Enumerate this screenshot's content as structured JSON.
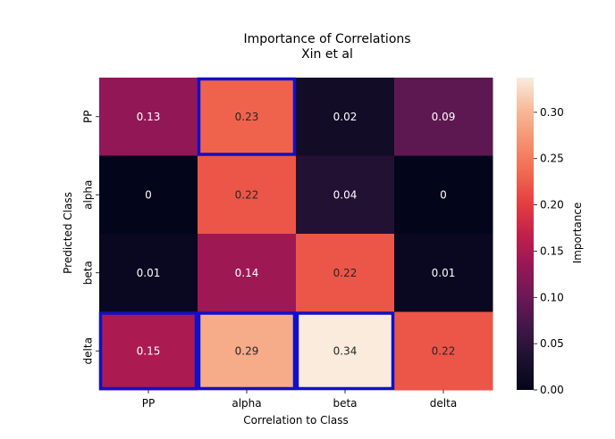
{
  "chart_data": {
    "type": "heatmap",
    "title": "Importance of Correlations",
    "subtitle": "Xin et al",
    "xlabel": "Correlation to Class",
    "ylabel": "Predicted Class",
    "x_categories": [
      "PP",
      "alpha",
      "beta",
      "delta"
    ],
    "y_categories": [
      "PP",
      "alpha",
      "beta",
      "delta"
    ],
    "values": [
      [
        0.13,
        0.23,
        0.02,
        0.09
      ],
      [
        0,
        0.22,
        0.04,
        0
      ],
      [
        0.01,
        0.14,
        0.22,
        0.01
      ],
      [
        0.15,
        0.29,
        0.34,
        0.22
      ]
    ],
    "value_labels": [
      [
        "0.13",
        "0.23",
        "0.02",
        "0.09"
      ],
      [
        "0",
        "0.22",
        "0.04",
        "0"
      ],
      [
        "0.01",
        "0.14",
        "0.22",
        "0.01"
      ],
      [
        "0.15",
        "0.29",
        "0.34",
        "0.22"
      ]
    ],
    "highlighted_cells": [
      [
        0,
        1
      ],
      [
        3,
        0
      ],
      [
        3,
        1
      ],
      [
        3,
        2
      ]
    ],
    "highlight_color": "#1010c8",
    "colorbar": {
      "label": "Importance",
      "range": [
        0,
        0.3375
      ],
      "ticks": [
        0.0,
        0.05,
        0.1,
        0.15,
        0.2,
        0.25,
        0.3
      ],
      "tick_labels": [
        "0.00",
        "0.05",
        "0.10",
        "0.15",
        "0.20",
        "0.25",
        "0.30"
      ]
    },
    "colormap": "rocket"
  }
}
